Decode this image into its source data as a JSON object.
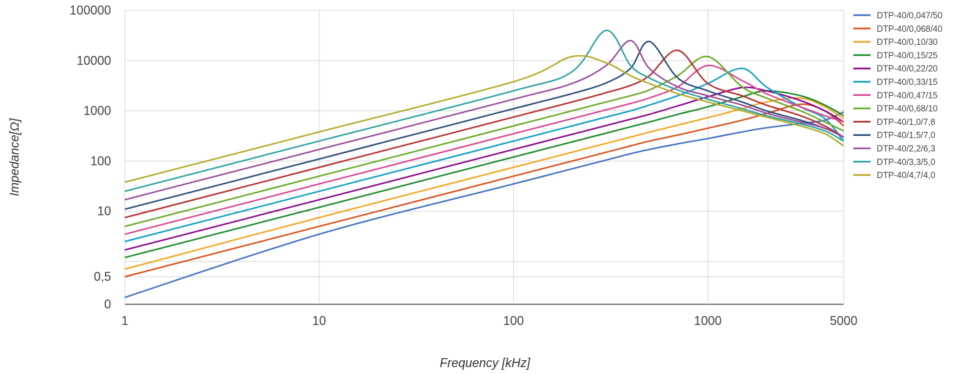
{
  "chart_data": {
    "type": "line",
    "title": "",
    "xlabel": "Frequency [kHz]",
    "ylabel": "Impedance[Ω]",
    "x_scale": "log",
    "y_scale": "log",
    "xlim": [
      1,
      5000
    ],
    "grid": true,
    "legend_position": "right",
    "x_ticks": [
      {
        "value": 1,
        "label": "1"
      },
      {
        "value": 10,
        "label": "10"
      },
      {
        "value": 100,
        "label": "100"
      },
      {
        "value": 1000,
        "label": "1000"
      },
      {
        "value": 5000,
        "label": "5000"
      }
    ],
    "y_ticks": [
      {
        "value": 100000,
        "label": "100000"
      },
      {
        "value": 10000,
        "label": "10000"
      },
      {
        "value": 1000,
        "label": "1000"
      },
      {
        "value": 100,
        "label": "100"
      },
      {
        "value": 10,
        "label": "10"
      },
      {
        "value": 1,
        "label": ""
      },
      {
        "value": 0.5,
        "label": "0,5"
      },
      {
        "value": 0.3,
        "label": "0"
      }
    ],
    "x": [
      1,
      10,
      100,
      200,
      300,
      400,
      500,
      700,
      1000,
      1500,
      2000,
      3000,
      4000,
      5000
    ],
    "series": [
      {
        "name": "DTP-40/0,047/50",
        "color": "#4472c4",
        "values": [
          0.35,
          3.5,
          35,
          70,
          105,
          140,
          170,
          220,
          280,
          380,
          460,
          560,
          650,
          950
        ]
      },
      {
        "name": "DTP-40/0,068/40",
        "color": "#d9541e",
        "values": [
          0.5,
          5,
          50,
          100,
          150,
          200,
          250,
          330,
          450,
          650,
          880,
          1350,
          1000,
          500
        ]
      },
      {
        "name": "DTP-40/0,10/30",
        "color": "#f5a623",
        "values": [
          0.75,
          7.5,
          75,
          150,
          225,
          300,
          375,
          520,
          730,
          1100,
          1500,
          1800,
          1200,
          700
        ]
      },
      {
        "name": "DTP-40/0,15/25",
        "color": "#1e8c2e",
        "values": [
          1.2,
          12,
          120,
          240,
          360,
          480,
          600,
          850,
          1200,
          1900,
          2500,
          2000,
          1300,
          800
        ]
      },
      {
        "name": "DTP-40/0,22/20",
        "color": "#8b0a8b",
        "values": [
          1.7,
          17,
          170,
          340,
          510,
          680,
          850,
          1250,
          1900,
          2900,
          2500,
          1600,
          1000,
          600
        ]
      },
      {
        "name": "DTP-40/0,33/15",
        "color": "#14a1c4",
        "values": [
          2.5,
          25,
          250,
          500,
          750,
          1000,
          1300,
          2000,
          3500,
          7000,
          3000,
          1200,
          700,
          250
        ]
      },
      {
        "name": "DTP-40/0,47/15",
        "color": "#d94a94",
        "values": [
          3.5,
          35,
          350,
          700,
          1050,
          1400,
          1800,
          3000,
          8000,
          4000,
          2200,
          1200,
          800,
          600
        ]
      },
      {
        "name": "DTP-40/0,68/10",
        "color": "#6aab28",
        "values": [
          5,
          50,
          500,
          1000,
          1500,
          2000,
          2600,
          5000,
          12000,
          3000,
          1800,
          1000,
          600,
          400
        ]
      },
      {
        "name": "DTP-40/1,0/7,8",
        "color": "#b83232",
        "values": [
          7.5,
          75,
          750,
          1500,
          2300,
          3200,
          5000,
          16000,
          3500,
          2000,
          1300,
          800,
          500,
          300
        ]
      },
      {
        "name": "DTP-40/1,5/7,0",
        "color": "#2e4f7a",
        "values": [
          11,
          110,
          1100,
          2200,
          3600,
          7000,
          24000,
          4500,
          2500,
          1500,
          1000,
          650,
          450,
          300
        ]
      },
      {
        "name": "DTP-40/2,2/6,3",
        "color": "#9c4f9c",
        "values": [
          17,
          170,
          1700,
          3500,
          8000,
          25000,
          7000,
          3000,
          2000,
          1300,
          900,
          600,
          450,
          300
        ]
      },
      {
        "name": "DTP-40/3,3/5,0",
        "color": "#2fa5a0",
        "values": [
          25,
          250,
          2500,
          6000,
          40000,
          8000,
          4500,
          2600,
          1700,
          1100,
          800,
          550,
          400,
          250
        ]
      },
      {
        "name": "DTP-40/4,7/4,0",
        "color": "#b5ab2c",
        "values": [
          38,
          380,
          3800,
          12000,
          9000,
          5000,
          3500,
          2200,
          1500,
          1000,
          750,
          500,
          350,
          200
        ]
      }
    ]
  }
}
